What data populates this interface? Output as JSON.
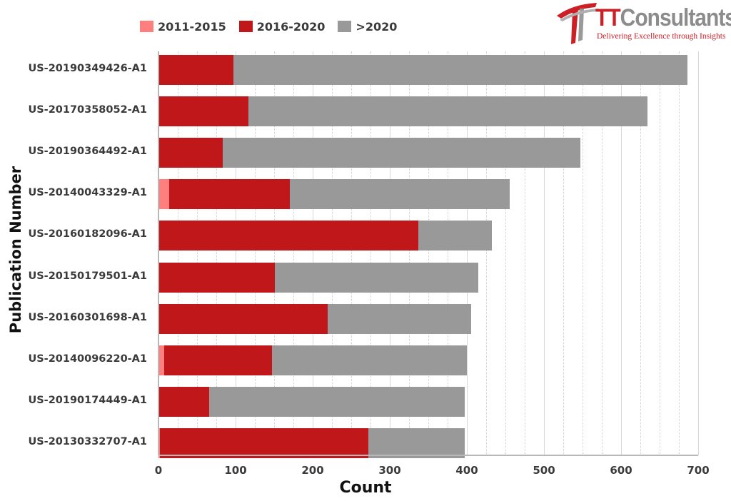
{
  "chart_data": {
    "type": "bar",
    "orientation": "horizontal",
    "stacked": true,
    "title": "",
    "xlabel": "Count",
    "ylabel": "Publication Number",
    "xlim": [
      0,
      700
    ],
    "xticks": [
      0,
      100,
      200,
      300,
      400,
      500,
      600,
      700
    ],
    "grid": true,
    "legend_position": "top-left",
    "categories": [
      "US-20190349426-A1",
      "US-20170358052-A1",
      "US-20190364492-A1",
      "US-20140043329-A1",
      "US-20160182096-A1",
      "US-20150179501-A1",
      "US-20160301698-A1",
      "US-20140096220-A1",
      "US-20190174449-A1",
      "US-20130332707-A1"
    ],
    "series": [
      {
        "name": "2011-2015",
        "color": "#ff7f7f",
        "values": [
          0,
          0,
          0,
          14,
          0,
          0,
          0,
          7,
          0,
          2
        ]
      },
      {
        "name": "2016-2020",
        "color": "#c0171b",
        "values": [
          97,
          117,
          83,
          156,
          337,
          151,
          219,
          140,
          66,
          270
        ]
      },
      {
        "name": ">2020",
        "color": "#999999",
        "values": [
          589,
          517,
          464,
          286,
          95,
          264,
          187,
          253,
          331,
          125
        ]
      }
    ],
    "totals": [
      686,
      634,
      547,
      456,
      432,
      415,
      406,
      400,
      397,
      397
    ]
  },
  "legend": {
    "items": [
      {
        "label": "2011-2015",
        "color": "#ff7f7f"
      },
      {
        "label": "2016-2020",
        "color": "#c0171b"
      },
      {
        "label": ">2020",
        "color": "#999999"
      }
    ]
  },
  "logo": {
    "brand_tt": "TT",
    "brand_rest": "Consultants",
    "tagline": "Delivering Excellence through Insights"
  },
  "axes": {
    "x_title": "Count",
    "y_title": "Publication Number"
  }
}
